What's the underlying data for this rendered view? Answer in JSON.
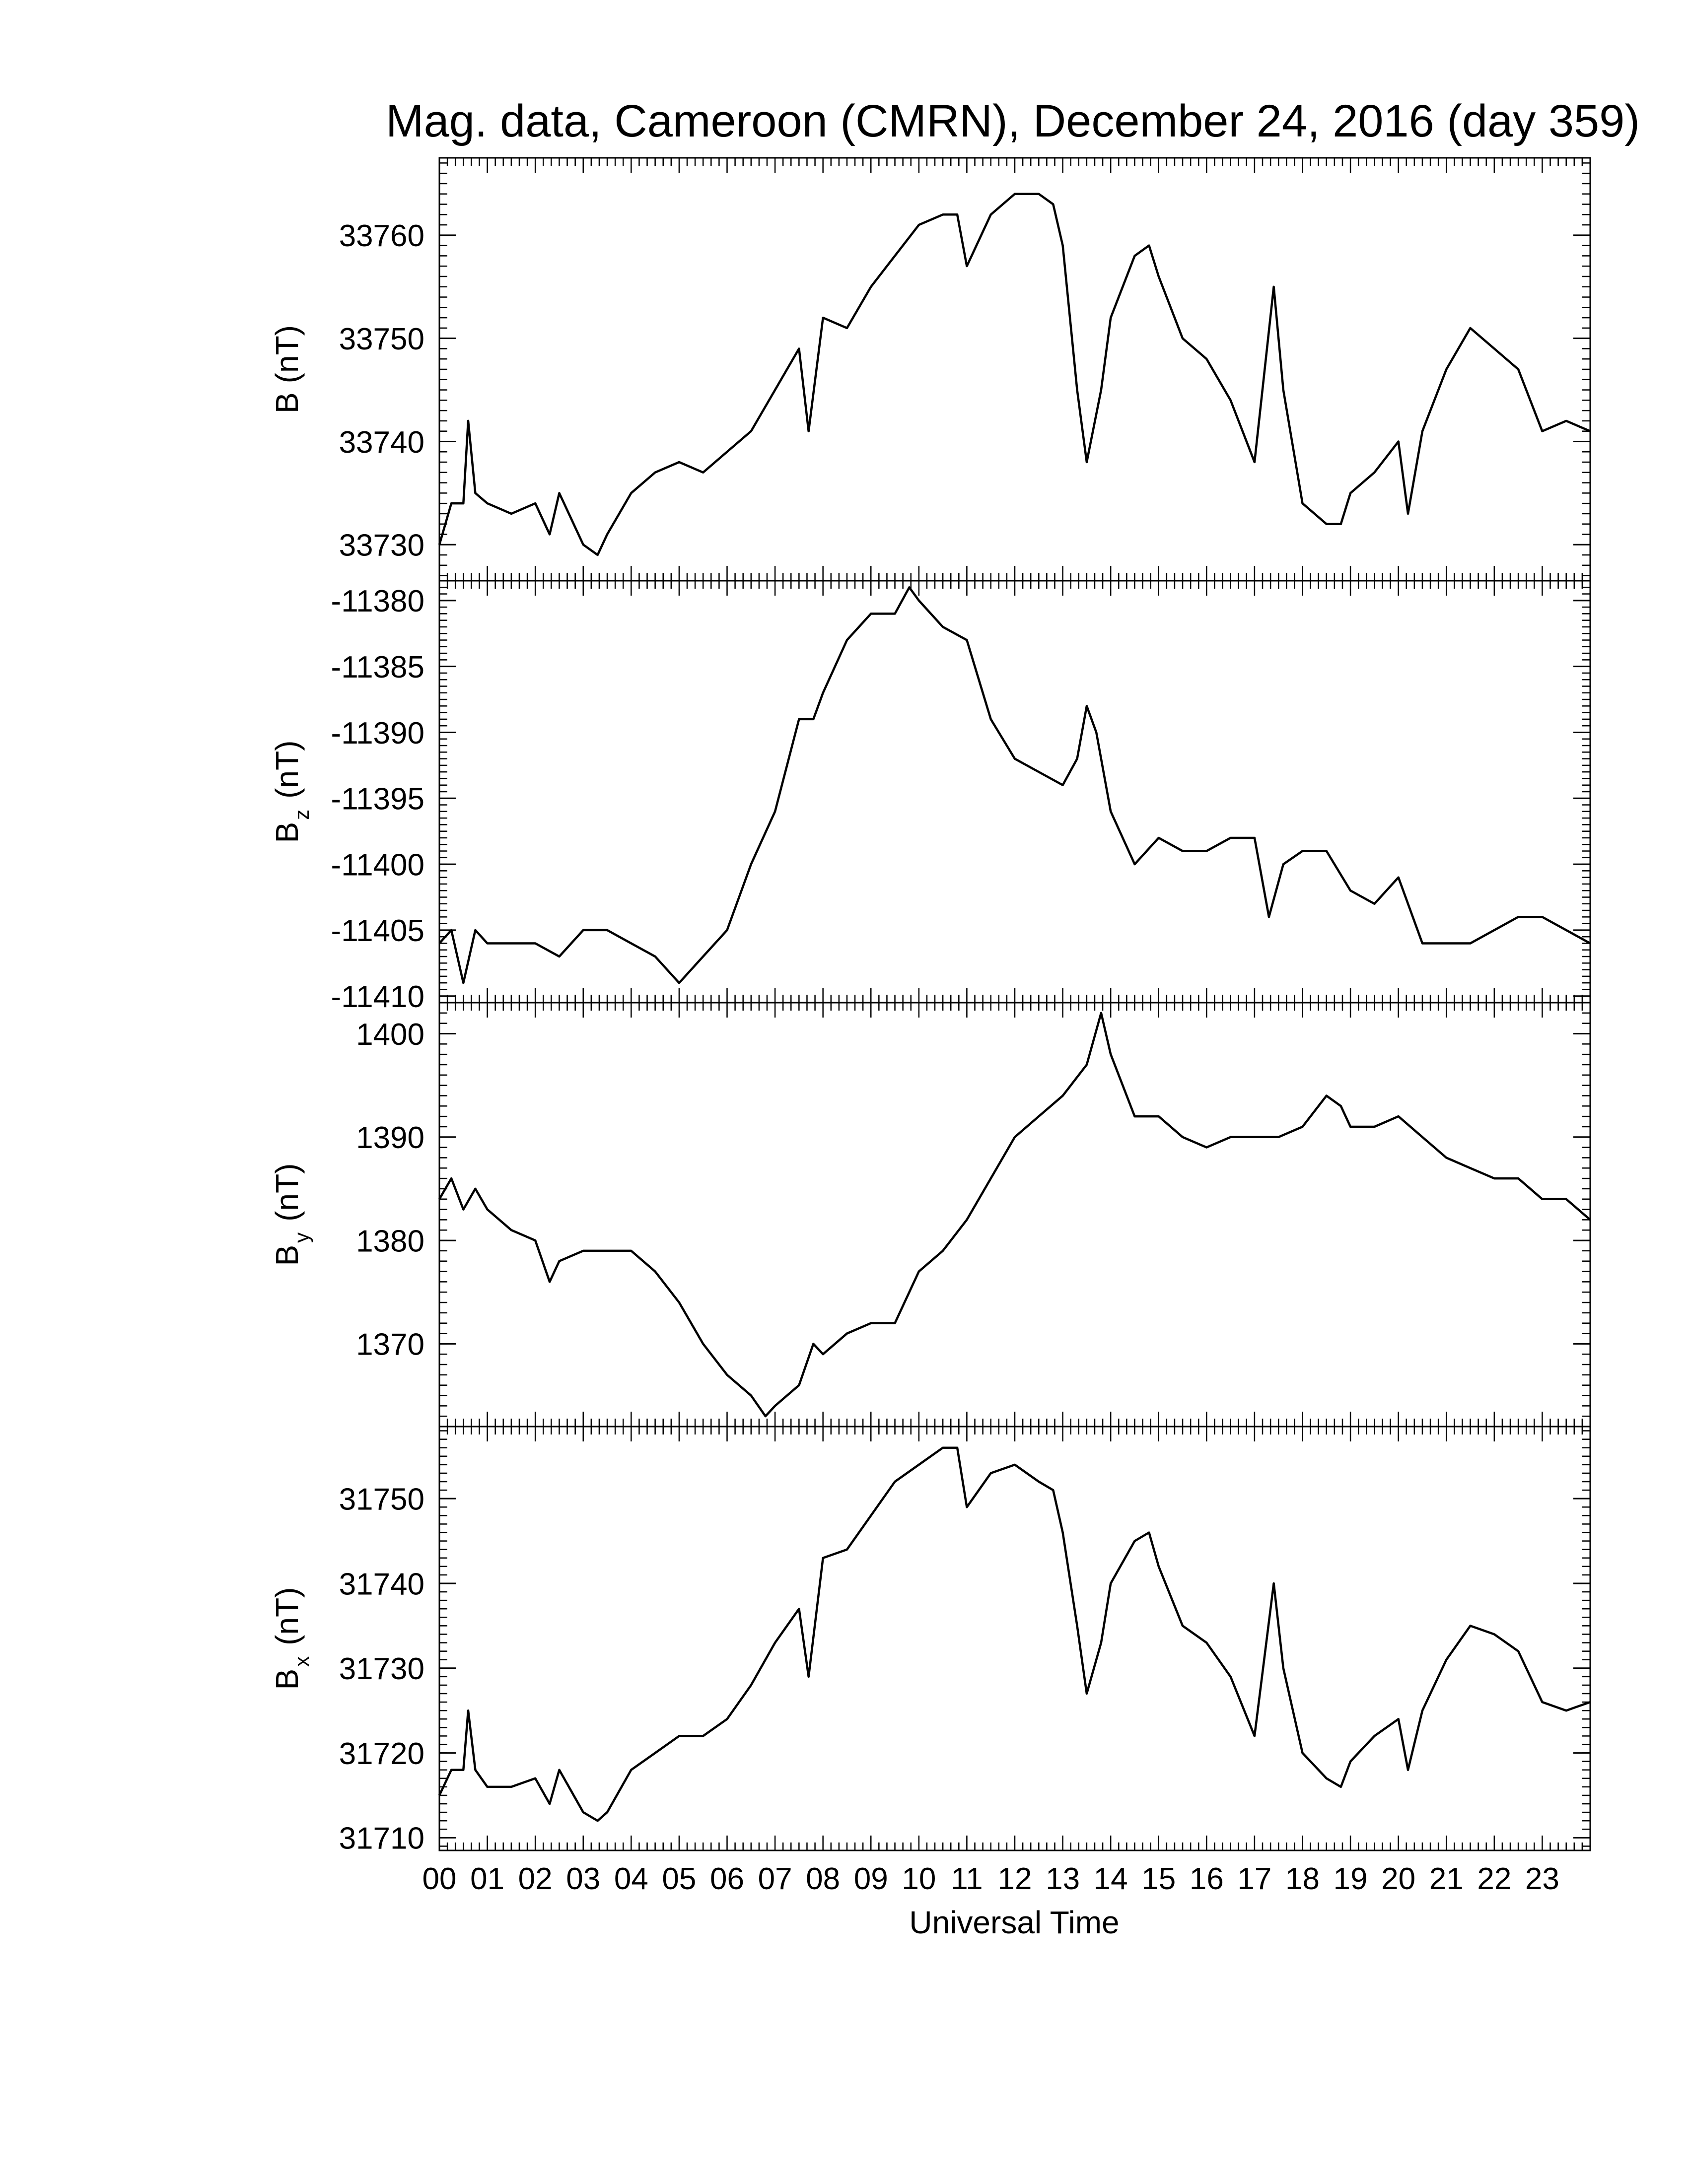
{
  "title": "Mag. data, Cameroon (CMRN), December 24, 2016 (day 359)",
  "xlabel": "Universal Time",
  "line_color": "#000000",
  "chart_data": [
    {
      "type": "line",
      "ylabel": {
        "main": "B",
        "sub": "",
        "unit": "(nT)"
      },
      "ylim": [
        33726.5,
        33767.5
      ],
      "yticks": [
        33730,
        33740,
        33750,
        33760
      ],
      "xlim": [
        0,
        24
      ],
      "x": [
        0,
        0.25,
        0.5,
        0.6,
        0.75,
        1.0,
        1.5,
        2.0,
        2.3,
        2.5,
        3.0,
        3.3,
        3.5,
        4.0,
        4.5,
        5.0,
        5.5,
        6.0,
        6.5,
        7.0,
        7.5,
        7.7,
        8.0,
        8.5,
        9.0,
        9.5,
        10.0,
        10.5,
        10.8,
        11.0,
        11.5,
        12.0,
        12.5,
        12.8,
        13.0,
        13.3,
        13.5,
        13.8,
        14.0,
        14.5,
        14.8,
        15.0,
        15.5,
        16.0,
        16.5,
        17.0,
        17.4,
        17.6,
        18.0,
        18.5,
        18.8,
        19.0,
        19.5,
        20.0,
        20.2,
        20.5,
        21.0,
        21.5,
        22.0,
        22.5,
        23.0,
        23.5,
        24.0
      ],
      "y": [
        33730,
        33734,
        33734,
        33742,
        33735,
        33734,
        33733,
        33734,
        33731,
        33735,
        33730,
        33729,
        33731,
        33735,
        33737,
        33738,
        33737,
        33739,
        33741,
        33745,
        33749,
        33741,
        33752,
        33751,
        33755,
        33758,
        33761,
        33762,
        33762,
        33757,
        33762,
        33764,
        33764,
        33763,
        33759,
        33745,
        33738,
        33745,
        33752,
        33758,
        33759,
        33756,
        33750,
        33748,
        33744,
        33738,
        33755,
        33745,
        33734,
        33732,
        33732,
        33735,
        33737,
        33740,
        33733,
        33741,
        33747,
        33751,
        33749,
        33747,
        33741,
        33742,
        33741
      ]
    },
    {
      "type": "line",
      "ylabel": {
        "main": "B",
        "sub": "z",
        "unit": "(nT)"
      },
      "ylim": [
        -11410.5,
        -11378.5
      ],
      "yticks": [
        -11380,
        -11385,
        -11390,
        -11395,
        -11400,
        -11405,
        -11410
      ],
      "xlim": [
        0,
        24
      ],
      "x": [
        0,
        0.25,
        0.5,
        0.75,
        1.0,
        1.5,
        2.0,
        2.5,
        3.0,
        3.5,
        4.0,
        4.5,
        5.0,
        5.5,
        6.0,
        6.5,
        7.0,
        7.5,
        7.8,
        8.0,
        8.5,
        9.0,
        9.5,
        9.8,
        10.0,
        10.5,
        11.0,
        11.5,
        12.0,
        12.5,
        13.0,
        13.3,
        13.5,
        13.7,
        14.0,
        14.5,
        15.0,
        15.5,
        16.0,
        16.5,
        17.0,
        17.3,
        17.6,
        18.0,
        18.5,
        19.0,
        19.5,
        20.0,
        20.5,
        21.0,
        21.5,
        22.0,
        22.5,
        23.0,
        23.5,
        24.0
      ],
      "y": [
        -11406,
        -11405,
        -11409,
        -11405,
        -11406,
        -11406,
        -11406,
        -11407,
        -11405,
        -11405,
        -11406,
        -11407,
        -11409,
        -11407,
        -11405,
        -11400,
        -11396,
        -11389,
        -11389,
        -11387,
        -11383,
        -11381,
        -11381,
        -11379,
        -11380,
        -11382,
        -11383,
        -11389,
        -11392,
        -11393,
        -11394,
        -11392,
        -11388,
        -11390,
        -11396,
        -11400,
        -11398,
        -11399,
        -11399,
        -11398,
        -11398,
        -11404,
        -11400,
        -11399,
        -11399,
        -11402,
        -11403,
        -11401,
        -11406,
        -11406,
        -11406,
        -11405,
        -11404,
        -11404,
        -11405,
        -11406
      ]
    },
    {
      "type": "line",
      "ylabel": {
        "main": "B",
        "sub": "y",
        "unit": "(nT)"
      },
      "ylim": [
        1362,
        1403
      ],
      "yticks": [
        1370,
        1380,
        1390,
        1400
      ],
      "xlim": [
        0,
        24
      ],
      "x": [
        0,
        0.25,
        0.5,
        0.75,
        1.0,
        1.5,
        2.0,
        2.3,
        2.5,
        3.0,
        3.5,
        4.0,
        4.5,
        5.0,
        5.5,
        6.0,
        6.5,
        6.8,
        7.0,
        7.5,
        7.8,
        8.0,
        8.5,
        9.0,
        9.5,
        10.0,
        10.5,
        11.0,
        11.5,
        12.0,
        12.5,
        13.0,
        13.5,
        13.8,
        14.0,
        14.5,
        15.0,
        15.5,
        16.0,
        16.5,
        17.0,
        17.5,
        18.0,
        18.5,
        18.8,
        19.0,
        19.5,
        20.0,
        20.5,
        21.0,
        21.5,
        22.0,
        22.5,
        23.0,
        23.5,
        24.0
      ],
      "y": [
        1384,
        1386,
        1383,
        1385,
        1383,
        1381,
        1380,
        1376,
        1378,
        1379,
        1379,
        1379,
        1377,
        1374,
        1370,
        1367,
        1365,
        1363,
        1364,
        1366,
        1370,
        1369,
        1371,
        1372,
        1372,
        1377,
        1379,
        1382,
        1386,
        1390,
        1392,
        1394,
        1397,
        1402,
        1398,
        1392,
        1392,
        1390,
        1389,
        1390,
        1390,
        1390,
        1391,
        1394,
        1393,
        1391,
        1391,
        1392,
        1390,
        1388,
        1387,
        1386,
        1386,
        1384,
        1384,
        1382
      ]
    },
    {
      "type": "line",
      "ylabel": {
        "main": "B",
        "sub": "x",
        "unit": "(nT)"
      },
      "ylim": [
        31708.5,
        31758.5
      ],
      "yticks": [
        31710,
        31720,
        31730,
        31740,
        31750
      ],
      "xlim": [
        0,
        24
      ],
      "x": [
        0,
        0.25,
        0.5,
        0.6,
        0.75,
        1.0,
        1.5,
        2.0,
        2.3,
        2.5,
        3.0,
        3.3,
        3.5,
        4.0,
        4.5,
        5.0,
        5.5,
        6.0,
        6.5,
        7.0,
        7.5,
        7.7,
        8.0,
        8.5,
        9.0,
        9.5,
        10.0,
        10.5,
        10.8,
        11.0,
        11.5,
        12.0,
        12.5,
        12.8,
        13.0,
        13.3,
        13.5,
        13.8,
        14.0,
        14.5,
        14.8,
        15.0,
        15.5,
        16.0,
        16.5,
        17.0,
        17.4,
        17.6,
        18.0,
        18.5,
        18.8,
        19.0,
        19.5,
        20.0,
        20.2,
        20.5,
        21.0,
        21.5,
        22.0,
        22.5,
        23.0,
        23.5,
        24.0
      ],
      "y": [
        31715,
        31718,
        31718,
        31725,
        31718,
        31716,
        31716,
        31717,
        31714,
        31718,
        31713,
        31712,
        31713,
        31718,
        31720,
        31722,
        31722,
        31724,
        31728,
        31733,
        31737,
        31729,
        31743,
        31744,
        31748,
        31752,
        31754,
        31756,
        31756,
        31749,
        31753,
        31754,
        31752,
        31751,
        31746,
        31735,
        31727,
        31733,
        31740,
        31745,
        31746,
        31742,
        31735,
        31733,
        31729,
        31722,
        31740,
        31730,
        31720,
        31717,
        31716,
        31719,
        31722,
        31724,
        31718,
        31725,
        31731,
        31735,
        31734,
        31732,
        31726,
        31725,
        31726
      ]
    }
  ],
  "xticks": [
    {
      "v": 0,
      "label": "00"
    },
    {
      "v": 1,
      "label": "01"
    },
    {
      "v": 2,
      "label": "02"
    },
    {
      "v": 3,
      "label": "03"
    },
    {
      "v": 4,
      "label": "04"
    },
    {
      "v": 5,
      "label": "05"
    },
    {
      "v": 6,
      "label": "06"
    },
    {
      "v": 7,
      "label": "07"
    },
    {
      "v": 8,
      "label": "08"
    },
    {
      "v": 9,
      "label": "09"
    },
    {
      "v": 10,
      "label": "10"
    },
    {
      "v": 11,
      "label": "11"
    },
    {
      "v": 12,
      "label": "12"
    },
    {
      "v": 13,
      "label": "13"
    },
    {
      "v": 14,
      "label": "14"
    },
    {
      "v": 15,
      "label": "15"
    },
    {
      "v": 16,
      "label": "16"
    },
    {
      "v": 17,
      "label": "17"
    },
    {
      "v": 18,
      "label": "18"
    },
    {
      "v": 19,
      "label": "19"
    },
    {
      "v": 20,
      "label": "20"
    },
    {
      "v": 21,
      "label": "21"
    },
    {
      "v": 22,
      "label": "22"
    },
    {
      "v": 23,
      "label": "23"
    }
  ]
}
